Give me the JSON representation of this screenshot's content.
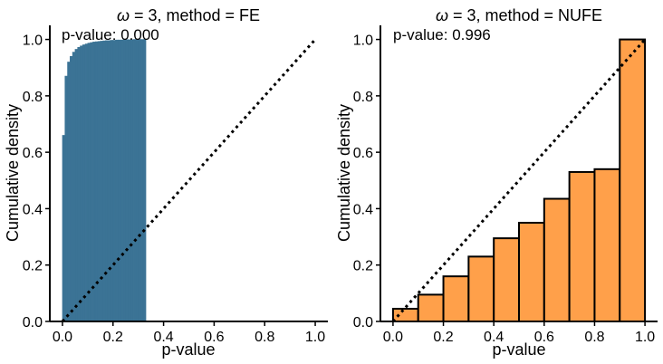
{
  "colors": {
    "fe_bar": "#3b7395",
    "nufe_bar": "#ffa04a",
    "bar_edge": "#000000",
    "reference_line": "#000000",
    "axis": "#000000"
  },
  "chart_data": [
    {
      "type": "bar",
      "title_symbol": "ω",
      "title_rest": " = 3, method = FE",
      "annotation": "p-value: 0.000",
      "xlabel": "p-value",
      "ylabel": "Cumulative density",
      "xlim": [
        -0.05,
        1.05
      ],
      "ylim": [
        0.0,
        1.05
      ],
      "xticks": [
        "0.0",
        "0.2",
        "0.4",
        "0.6",
        "0.8",
        "1.0"
      ],
      "yticks": [
        "0.0",
        "0.2",
        "0.4",
        "0.6",
        "0.8",
        "1.0"
      ],
      "grid": false,
      "reference_line": {
        "style": "dotted",
        "from": [
          0,
          0
        ],
        "to": [
          1,
          1
        ]
      },
      "bars": {
        "bin_width": 0.01,
        "edges_visible": false,
        "x_start": [
          0.0,
          0.01,
          0.02,
          0.03,
          0.04,
          0.05,
          0.06,
          0.07,
          0.08,
          0.09,
          0.1,
          0.11,
          0.12,
          0.13,
          0.14,
          0.15,
          0.16,
          0.17,
          0.18,
          0.19,
          0.2,
          0.21,
          0.22,
          0.23,
          0.24,
          0.25,
          0.26,
          0.27,
          0.28,
          0.29,
          0.3,
          0.31,
          0.32
        ],
        "values": [
          0.66,
          0.87,
          0.92,
          0.94,
          0.955,
          0.965,
          0.972,
          0.977,
          0.981,
          0.984,
          0.987,
          0.989,
          0.991,
          0.992,
          0.993,
          0.994,
          0.995,
          0.996,
          0.996,
          0.997,
          0.997,
          0.998,
          0.998,
          0.998,
          0.999,
          0.999,
          0.999,
          0.999,
          1.0,
          1.0,
          1.0,
          1.0,
          1.0
        ]
      }
    },
    {
      "type": "bar",
      "title_symbol": "ω",
      "title_rest": " = 3, method = NUFE",
      "annotation": "p-value: 0.996",
      "xlabel": "p-value",
      "ylabel": "Cumulative density",
      "xlim": [
        -0.05,
        1.05
      ],
      "ylim": [
        0.0,
        1.05
      ],
      "xticks": [
        "0.0",
        "0.2",
        "0.4",
        "0.6",
        "0.8",
        "1.0"
      ],
      "yticks": [
        "0.0",
        "0.2",
        "0.4",
        "0.6",
        "0.8",
        "1.0"
      ],
      "grid": false,
      "reference_line": {
        "style": "dotted",
        "from": [
          0,
          0
        ],
        "to": [
          1,
          1
        ]
      },
      "bars": {
        "bin_width": 0.1,
        "edges_visible": true,
        "x_start": [
          0.0,
          0.1,
          0.2,
          0.3,
          0.4,
          0.5,
          0.6,
          0.7,
          0.8,
          0.9
        ],
        "values": [
          0.045,
          0.095,
          0.16,
          0.23,
          0.295,
          0.35,
          0.435,
          0.53,
          0.54,
          1.0
        ]
      }
    }
  ]
}
